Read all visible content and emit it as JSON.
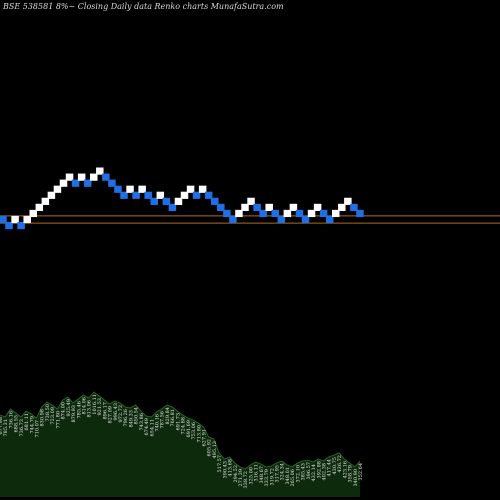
{
  "chart_data": {
    "type": "renko",
    "title": "BSE 538581 8%~ Closing Daily data Renko charts MunafaSutra.com",
    "colors": {
      "background": "#000000",
      "up_brick": "#ffffff",
      "down_brick": "#1f6fe6",
      "reference_line": "#b06a22",
      "volume_area": "#0d2a0d",
      "volume_edge": "#2f6e2f"
    },
    "reference_lines": [
      0.6,
      -0.6
    ],
    "bricks": [
      {
        "dir": "down",
        "level": 0
      },
      {
        "dir": "down",
        "level": -1
      },
      {
        "dir": "up",
        "level": 0
      },
      {
        "dir": "down",
        "level": -1
      },
      {
        "dir": "up",
        "level": 0
      },
      {
        "dir": "up",
        "level": 1
      },
      {
        "dir": "up",
        "level": 2
      },
      {
        "dir": "up",
        "level": 3
      },
      {
        "dir": "up",
        "level": 4
      },
      {
        "dir": "up",
        "level": 5
      },
      {
        "dir": "up",
        "level": 6
      },
      {
        "dir": "up",
        "level": 7
      },
      {
        "dir": "down",
        "level": 6
      },
      {
        "dir": "up",
        "level": 7
      },
      {
        "dir": "down",
        "level": 6
      },
      {
        "dir": "up",
        "level": 7
      },
      {
        "dir": "up",
        "level": 8
      },
      {
        "dir": "down",
        "level": 7
      },
      {
        "dir": "down",
        "level": 6
      },
      {
        "dir": "down",
        "level": 5
      },
      {
        "dir": "down",
        "level": 4
      },
      {
        "dir": "up",
        "level": 5
      },
      {
        "dir": "down",
        "level": 4
      },
      {
        "dir": "up",
        "level": 5
      },
      {
        "dir": "down",
        "level": 4
      },
      {
        "dir": "down",
        "level": 3
      },
      {
        "dir": "up",
        "level": 4
      },
      {
        "dir": "down",
        "level": 3
      },
      {
        "dir": "down",
        "level": 2
      },
      {
        "dir": "up",
        "level": 3
      },
      {
        "dir": "up",
        "level": 4
      },
      {
        "dir": "up",
        "level": 5
      },
      {
        "dir": "down",
        "level": 4
      },
      {
        "dir": "up",
        "level": 5
      },
      {
        "dir": "down",
        "level": 4
      },
      {
        "dir": "down",
        "level": 3
      },
      {
        "dir": "down",
        "level": 2
      },
      {
        "dir": "down",
        "level": 1
      },
      {
        "dir": "down",
        "level": 0
      },
      {
        "dir": "up",
        "level": 1
      },
      {
        "dir": "up",
        "level": 2
      },
      {
        "dir": "up",
        "level": 3
      },
      {
        "dir": "down",
        "level": 2
      },
      {
        "dir": "down",
        "level": 1
      },
      {
        "dir": "up",
        "level": 2
      },
      {
        "dir": "down",
        "level": 1
      },
      {
        "dir": "down",
        "level": 0
      },
      {
        "dir": "up",
        "level": 1
      },
      {
        "dir": "up",
        "level": 2
      },
      {
        "dir": "down",
        "level": 1
      },
      {
        "dir": "down",
        "level": 0
      },
      {
        "dir": "up",
        "level": 1
      },
      {
        "dir": "up",
        "level": 2
      },
      {
        "dir": "down",
        "level": 1
      },
      {
        "dir": "down",
        "level": 0
      },
      {
        "dir": "up",
        "level": 1
      },
      {
        "dir": "up",
        "level": 2
      },
      {
        "dir": "up",
        "level": 3
      },
      {
        "dir": "down",
        "level": 2
      },
      {
        "dir": "down",
        "level": 1
      }
    ],
    "volume": {
      "values": [
        82,
        80,
        88,
        84,
        80,
        86,
        83,
        79,
        90,
        95,
        92,
        88,
        97,
        100,
        94,
        98,
        102,
        99,
        105,
        101,
        97,
        93,
        96,
        94,
        90,
        89,
        92,
        86,
        81,
        80,
        85,
        88,
        92,
        90,
        86,
        82,
        79,
        77,
        74,
        70,
        60,
        58,
        44,
        38,
        40,
        34,
        30,
        28,
        32,
        35,
        33,
        30,
        31,
        34,
        36,
        32,
        30,
        34,
        36,
        37,
        35,
        38,
        36,
        40,
        42,
        44,
        38,
        34,
        30,
        36
      ],
      "labels": [
        "677.98",
        "785.31",
        "736.16",
        "688.55",
        "736.73",
        "681.11",
        "744.79",
        "710.07",
        "830.98",
        "738.50",
        "723.09",
        "771.80",
        "874.00",
        "925.49",
        "879.93",
        "785.46",
        "814.06",
        "813.06",
        "1016.11",
        "921.53",
        "896.17",
        "827.09",
        "996.43",
        "972.72",
        "796.26",
        "849.33",
        "850.54",
        "743.86",
        "674.49",
        "654.11",
        "740.16",
        "787.56",
        "829.84",
        "766.81",
        "691.73",
        "724.88",
        "691.69",
        "753.06",
        "713.80",
        "627.91",
        "605.92",
        "495.13",
        "517.57",
        "390.43",
        "413.68",
        "294.52",
        "271.39",
        "338.72",
        "325.00",
        "316.11",
        "348.67",
        "333.79",
        "319.72",
        "317.95",
        "324.34",
        "348.01",
        "365.06",
        "372.10",
        "385.43",
        "396.57",
        "432.14",
        "392.88",
        "402.38",
        "417.44",
        "430.75",
        "436.72",
        "423.16",
        "358.79",
        "340.90",
        "352.64"
      ]
    }
  }
}
